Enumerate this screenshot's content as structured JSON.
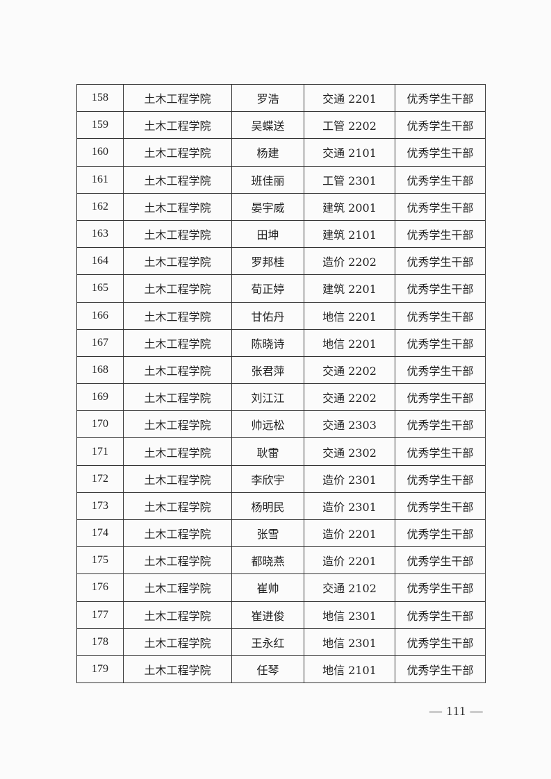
{
  "rows": [
    [
      "158",
      "土木工程学院",
      "罗浩",
      "交通 2201",
      "优秀学生干部"
    ],
    [
      "159",
      "土木工程学院",
      "吴蝶送",
      "工管 2202",
      "优秀学生干部"
    ],
    [
      "160",
      "土木工程学院",
      "杨建",
      "交通 2101",
      "优秀学生干部"
    ],
    [
      "161",
      "土木工程学院",
      "班佳丽",
      "工管 2301",
      "优秀学生干部"
    ],
    [
      "162",
      "土木工程学院",
      "晏宇威",
      "建筑 2001",
      "优秀学生干部"
    ],
    [
      "163",
      "土木工程学院",
      "田坤",
      "建筑 2101",
      "优秀学生干部"
    ],
    [
      "164",
      "土木工程学院",
      "罗邦桂",
      "造价 2202",
      "优秀学生干部"
    ],
    [
      "165",
      "土木工程学院",
      "荀正婷",
      "建筑 2201",
      "优秀学生干部"
    ],
    [
      "166",
      "土木工程学院",
      "甘佑丹",
      "地信 2201",
      "优秀学生干部"
    ],
    [
      "167",
      "土木工程学院",
      "陈晓诗",
      "地信 2201",
      "优秀学生干部"
    ],
    [
      "168",
      "土木工程学院",
      "张君萍",
      "交通 2202",
      "优秀学生干部"
    ],
    [
      "169",
      "土木工程学院",
      "刘江江",
      "交通 2202",
      "优秀学生干部"
    ],
    [
      "170",
      "土木工程学院",
      "帅远松",
      "交通 2303",
      "优秀学生干部"
    ],
    [
      "171",
      "土木工程学院",
      "耿雷",
      "交通 2302",
      "优秀学生干部"
    ],
    [
      "172",
      "土木工程学院",
      "李欣宇",
      "造价 2301",
      "优秀学生干部"
    ],
    [
      "173",
      "土木工程学院",
      "杨明民",
      "造价 2301",
      "优秀学生干部"
    ],
    [
      "174",
      "土木工程学院",
      "张雪",
      "造价 2201",
      "优秀学生干部"
    ],
    [
      "175",
      "土木工程学院",
      "都晓燕",
      "造价 2201",
      "优秀学生干部"
    ],
    [
      "176",
      "土木工程学院",
      "崔帅",
      "交通 2102",
      "优秀学生干部"
    ],
    [
      "177",
      "土木工程学院",
      "崔进俊",
      "地信 2301",
      "优秀学生干部"
    ],
    [
      "178",
      "土木工程学院",
      "王永红",
      "地信 2301",
      "优秀学生干部"
    ],
    [
      "179",
      "土木工程学院",
      "任琴",
      "地信 2101",
      "优秀学生干部"
    ]
  ],
  "page_number": "— 111 —"
}
